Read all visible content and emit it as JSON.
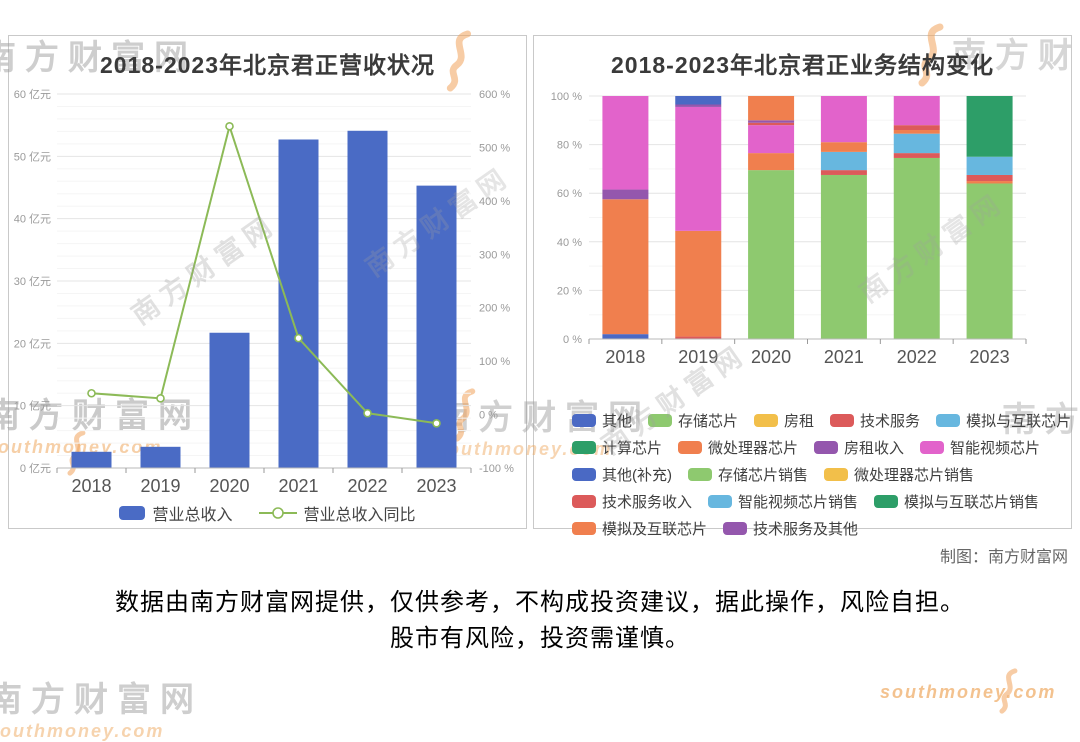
{
  "page": {
    "credit": "制图：南方财富网",
    "disclaimer_line1": "数据由南方财富网提供，仅供参考，不构成投资建议，据此操作，风险自担。",
    "disclaimer_line2": "股市有风险，投资需谨慎。",
    "watermark": {
      "brand": "南方财富网",
      "domain": "southmoney.com"
    }
  },
  "colors": {
    "bar_blue": "#4a6bc5",
    "line_green": "#8cba57",
    "blue": "#4a69c4",
    "light_green": "#8ec96f",
    "amber": "#f2bf4a",
    "red": "#dc5a5a",
    "sky": "#67b7df",
    "sea_green": "#2d9e68",
    "orange": "#f07f4e",
    "purple": "#9457ad",
    "magenta": "#e263cb"
  },
  "chart_data": [
    {
      "type": "bar+line",
      "title": "2018-2023年北京君正营收状况",
      "categories": [
        "2018",
        "2019",
        "2020",
        "2021",
        "2022",
        "2023"
      ],
      "series": [
        {
          "name": "营业总收入",
          "type": "bar",
          "unit": "亿元",
          "color_key": "bar_blue",
          "values": [
            2.6,
            3.4,
            21.7,
            52.7,
            54.1,
            45.3
          ]
        },
        {
          "name": "营业总收入同比",
          "type": "line",
          "unit": "%",
          "color_key": "line_green",
          "values": [
            39.9,
            30.4,
            539.6,
            143.1,
            2.6,
            -16.3
          ]
        }
      ],
      "left_axis": {
        "min": 0,
        "max": 60,
        "step": 10,
        "minor_step": 2,
        "suffix": " 亿元"
      },
      "right_axis": {
        "min": -100,
        "max": 600,
        "step": 100,
        "suffix": " %"
      },
      "legend_labels": [
        "营业总收入",
        "营业总收入同比"
      ],
      "grid": true,
      "legend_position": "bottom"
    },
    {
      "type": "stacked-bar-percent",
      "title": "2018-2023年北京君正业务结构变化",
      "categories": [
        "2018",
        "2019",
        "2020",
        "2021",
        "2022",
        "2023"
      ],
      "y_axis": {
        "min": 0,
        "max": 100,
        "step": 20,
        "minor_step": 10,
        "suffix": " %"
      },
      "stacks": [
        [
          {
            "name": "其他",
            "color": "blue",
            "value": 2
          },
          {
            "name": "微处理器芯片",
            "color": "orange",
            "value": 55.5
          },
          {
            "name": "技术服务及其他",
            "color": "purple",
            "value": 4
          },
          {
            "name": "智能视频芯片",
            "color": "magenta",
            "value": 38.5
          }
        ],
        [
          {
            "name": "技术服务",
            "color": "red",
            "value": 1
          },
          {
            "name": "微处理器芯片",
            "color": "orange",
            "value": 43.5
          },
          {
            "name": "智能视频芯片",
            "color": "magenta",
            "value": 51
          },
          {
            "name": "房租收入",
            "color": "purple",
            "value": 1
          },
          {
            "name": "其他(补充)",
            "color": "blue",
            "value": 3.5
          }
        ],
        [
          {
            "name": "存储芯片销售",
            "color": "light_green",
            "value": 69.5
          },
          {
            "name": "微处理器芯片",
            "color": "orange",
            "value": 7
          },
          {
            "name": "智能视频芯片",
            "color": "magenta",
            "value": 11.5
          },
          {
            "name": "技术服务",
            "color": "red",
            "value": 1
          },
          {
            "name": "房租收入",
            "color": "purple",
            "value": 1
          },
          {
            "name": "模拟及互联芯片",
            "color": "orange",
            "value": 10
          }
        ],
        [
          {
            "name": "存储芯片销售",
            "color": "light_green",
            "value": 67.5
          },
          {
            "name": "技术服务收入",
            "color": "red",
            "value": 2
          },
          {
            "name": "智能视频芯片销售",
            "color": "sky",
            "value": 7.5
          },
          {
            "name": "模拟及互联芯片",
            "color": "orange",
            "value": 4
          },
          {
            "name": "智能视频芯片",
            "color": "magenta",
            "value": 19
          }
        ],
        [
          {
            "name": "存储芯片销售",
            "color": "light_green",
            "value": 74.5
          },
          {
            "name": "技术服务收入",
            "color": "red",
            "value": 2
          },
          {
            "name": "智能视频芯片销售",
            "color": "sky",
            "value": 8
          },
          {
            "name": "模拟及互联芯片",
            "color": "orange",
            "value": 1.5
          },
          {
            "name": "技术服务",
            "color": "red",
            "value": 2
          },
          {
            "name": "智能视频芯片",
            "color": "magenta",
            "value": 12
          }
        ],
        [
          {
            "name": "存储芯片销售",
            "color": "light_green",
            "value": 64
          },
          {
            "name": "模拟及互联芯片",
            "color": "orange",
            "value": 1
          },
          {
            "name": "技术服务收入",
            "color": "red",
            "value": 2.5
          },
          {
            "name": "模拟与互联芯片",
            "color": "sky",
            "value": 7.5
          },
          {
            "name": "计算芯片",
            "color": "sea_green",
            "value": 25
          }
        ]
      ],
      "legend_rows": [
        [
          {
            "label": "其他",
            "color": "blue"
          },
          {
            "label": "存储芯片",
            "color": "light_green"
          },
          {
            "label": "房租",
            "color": "amber"
          },
          {
            "label": "技术服务",
            "color": "red"
          },
          {
            "label": "模拟与互联芯片",
            "color": "sky"
          }
        ],
        [
          {
            "label": "计算芯片",
            "color": "sea_green"
          },
          {
            "label": "微处理器芯片",
            "color": "orange"
          },
          {
            "label": "房租收入",
            "color": "purple"
          },
          {
            "label": "智能视频芯片",
            "color": "magenta"
          }
        ],
        [
          {
            "label": "其他(补充)",
            "color": "blue"
          },
          {
            "label": "存储芯片销售",
            "color": "light_green"
          },
          {
            "label": "微处理器芯片销售",
            "color": "amber"
          }
        ],
        [
          {
            "label": "技术服务收入",
            "color": "red"
          },
          {
            "label": "智能视频芯片销售",
            "color": "sky"
          },
          {
            "label": "模拟与互联芯片销售",
            "color": "sea_green"
          }
        ],
        [
          {
            "label": "模拟及互联芯片",
            "color": "orange"
          },
          {
            "label": "技术服务及其他",
            "color": "purple"
          }
        ]
      ],
      "grid": true,
      "legend_position": "bottom"
    }
  ]
}
